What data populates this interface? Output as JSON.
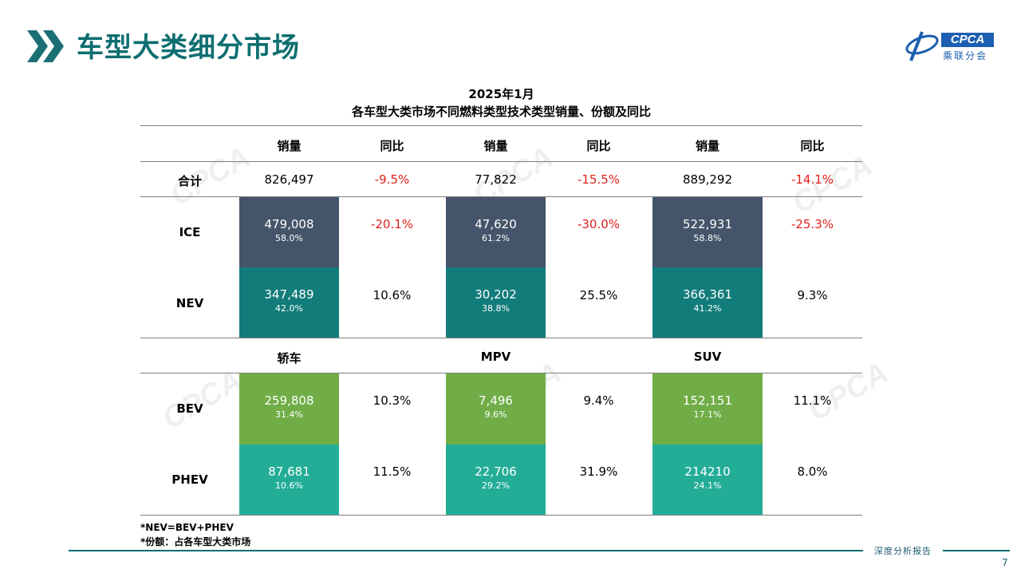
{
  "header": {
    "title": "车型大类细分市场"
  },
  "logo": {
    "brand": "CPCA",
    "sub": "乘联分会"
  },
  "table": {
    "title_line1": "2025年1月",
    "title_line2": "各车型大类市场不同燃料类型技术类型销量、份额及同比",
    "col_headers": [
      "销量",
      "同比",
      "销量",
      "同比",
      "销量",
      "同比"
    ],
    "total": {
      "label": "合计",
      "values": [
        "826,497",
        "-9.5%",
        "77,822",
        "-15.5%",
        "889,292",
        "-14.1%"
      ]
    },
    "ice": {
      "label": "ICE",
      "groups": [
        {
          "value": "479,008",
          "share": "58.0%",
          "yoy": "-20.1%"
        },
        {
          "value": "47,620",
          "share": "61.2%",
          "yoy": "-30.0%"
        },
        {
          "value": "522,931",
          "share": "58.8%",
          "yoy": "-25.3%"
        }
      ]
    },
    "nev": {
      "label": "NEV",
      "groups": [
        {
          "value": "347,489",
          "share": "42.0%",
          "yoy": "10.6%"
        },
        {
          "value": "30,202",
          "share": "38.8%",
          "yoy": "25.5%"
        },
        {
          "value": "366,361",
          "share": "41.2%",
          "yoy": "9.3%"
        }
      ]
    },
    "categories": [
      "轿车",
      "MPV",
      "SUV"
    ],
    "bev": {
      "label": "BEV",
      "groups": [
        {
          "value": "259,808",
          "share": "31.4%",
          "yoy": "10.3%"
        },
        {
          "value": "7,496",
          "share": "9.6%",
          "yoy": "9.4%"
        },
        {
          "value": "152,151",
          "share": "17.1%",
          "yoy": "11.1%"
        }
      ]
    },
    "phev": {
      "label": "PHEV",
      "groups": [
        {
          "value": "87,681",
          "share": "10.6%",
          "yoy": "11.5%"
        },
        {
          "value": "22,706",
          "share": "29.2%",
          "yoy": "31.9%"
        },
        {
          "value": "214210",
          "share": "24.1%",
          "yoy": "8.0%"
        }
      ]
    }
  },
  "notes": [
    "*NEV=BEV+PHEV",
    "*份额：占各车型大类市场"
  ],
  "footer": {
    "text": "深度分析报告",
    "page": "7"
  },
  "colors": {
    "accent": "#0e6e70",
    "ice": "#44546a",
    "nev": "#127c7a",
    "bev": "#70ad47",
    "phev": "#23ad96",
    "negative": "#e0201c"
  },
  "icons": {
    "title_marker": "double-chevron-icon"
  }
}
